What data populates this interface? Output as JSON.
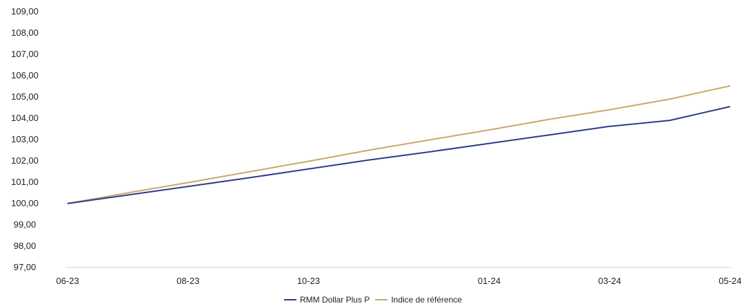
{
  "chart_data": {
    "type": "line",
    "x": [
      "06-23",
      "07-23",
      "08-23",
      "09-23",
      "10-23",
      "11-23",
      "12-23",
      "01-24",
      "02-24",
      "03-24",
      "04-24",
      "05-24"
    ],
    "x_tick_labels": [
      "06-23",
      "08-23",
      "10-23",
      "01-24",
      "03-24",
      "05-24"
    ],
    "y_tick_labels": [
      "109,00",
      "108,00",
      "107,00",
      "106,00",
      "105,00",
      "104,00",
      "103,00",
      "102,00",
      "101,00",
      "100,00",
      "99,00",
      "98,00",
      "97,00"
    ],
    "ylim": [
      97,
      109
    ],
    "grid": false,
    "legend_position": "bottom-center",
    "series": [
      {
        "name": "RMM Dollar Plus P",
        "color": "#2e3a87",
        "values": [
          100.0,
          100.4,
          100.8,
          101.2,
          101.62,
          102.04,
          102.42,
          102.82,
          103.22,
          103.62,
          103.9,
          104.55
        ]
      },
      {
        "name": "Indice de référence",
        "color": "#c8a86a",
        "values": [
          100.0,
          100.5,
          100.98,
          101.48,
          101.98,
          102.5,
          102.98,
          103.45,
          103.95,
          104.4,
          104.9,
          105.52
        ]
      }
    ]
  }
}
